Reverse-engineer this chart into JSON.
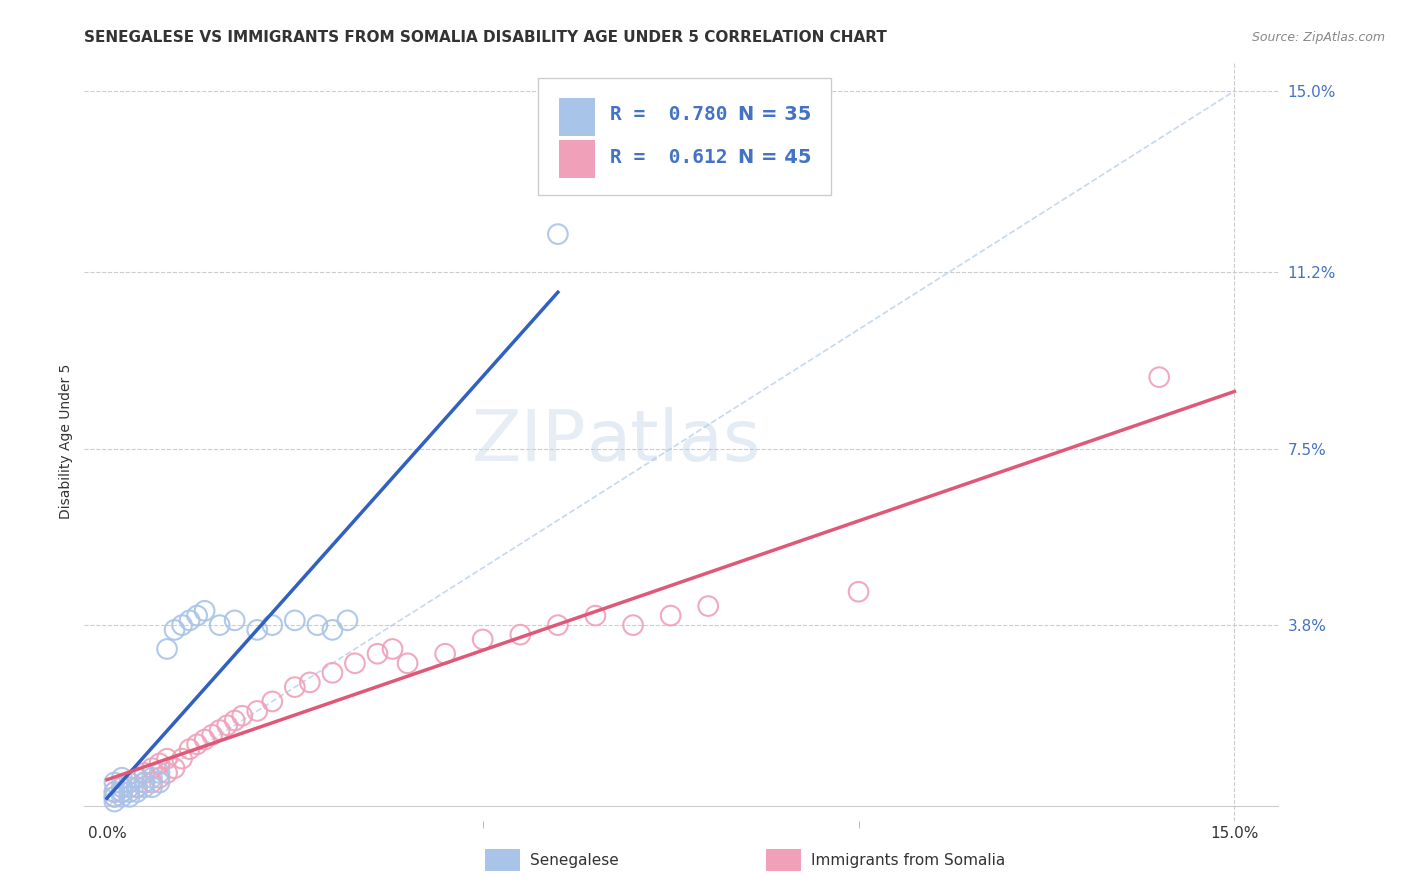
{
  "title": "SENEGALESE VS IMMIGRANTS FROM SOMALIA DISABILITY AGE UNDER 5 CORRELATION CHART",
  "source": "Source: ZipAtlas.com",
  "ylabel": "Disability Age Under 5",
  "xmin": 0.0,
  "xmax": 0.15,
  "ymin": 0.0,
  "ymax": 0.15,
  "ytick_positions": [
    0.038,
    0.075,
    0.112,
    0.15
  ],
  "ytick_labels": [
    "3.8%",
    "7.5%",
    "11.2%",
    "15.0%"
  ],
  "legend_r1": "R =  0.780",
  "legend_n1": "N = 35",
  "legend_r2": "R =  0.612",
  "legend_n2": "N = 45",
  "series1_label": "Senegalese",
  "series2_label": "Immigrants from Somalia",
  "series1_color": "#a8c4e8",
  "series2_color": "#f0a0b8",
  "series1_line_color": "#3060c0",
  "series2_line_color": "#e05878",
  "diag_line_color": "#b8cfe8",
  "watermark_zip": "ZIP",
  "watermark_atlas": "atlas",
  "background_color": "#ffffff",
  "senegalese_x": [
    0.001,
    0.001,
    0.001,
    0.001,
    0.002,
    0.002,
    0.002,
    0.002,
    0.003,
    0.003,
    0.003,
    0.004,
    0.004,
    0.004,
    0.005,
    0.005,
    0.006,
    0.006,
    0.007,
    0.007,
    0.008,
    0.009,
    0.01,
    0.011,
    0.012,
    0.013,
    0.015,
    0.017,
    0.02,
    0.022,
    0.025,
    0.028,
    0.03,
    0.032,
    0.06
  ],
  "senegalese_y": [
    0.001,
    0.002,
    0.003,
    0.005,
    0.002,
    0.003,
    0.004,
    0.006,
    0.002,
    0.003,
    0.005,
    0.003,
    0.004,
    0.006,
    0.004,
    0.005,
    0.004,
    0.006,
    0.005,
    0.007,
    0.033,
    0.037,
    0.038,
    0.039,
    0.04,
    0.041,
    0.038,
    0.039,
    0.037,
    0.038,
    0.039,
    0.038,
    0.037,
    0.039,
    0.12
  ],
  "somalia_x": [
    0.001,
    0.001,
    0.002,
    0.002,
    0.003,
    0.003,
    0.004,
    0.004,
    0.005,
    0.005,
    0.006,
    0.006,
    0.007,
    0.007,
    0.008,
    0.008,
    0.009,
    0.01,
    0.011,
    0.012,
    0.013,
    0.014,
    0.015,
    0.016,
    0.017,
    0.018,
    0.02,
    0.022,
    0.025,
    0.027,
    0.03,
    0.033,
    0.036,
    0.038,
    0.04,
    0.045,
    0.05,
    0.055,
    0.06,
    0.065,
    0.07,
    0.075,
    0.08,
    0.1,
    0.14
  ],
  "somalia_y": [
    0.002,
    0.003,
    0.003,
    0.004,
    0.004,
    0.005,
    0.004,
    0.006,
    0.005,
    0.007,
    0.005,
    0.008,
    0.006,
    0.009,
    0.007,
    0.01,
    0.008,
    0.01,
    0.012,
    0.013,
    0.014,
    0.015,
    0.016,
    0.017,
    0.018,
    0.019,
    0.02,
    0.022,
    0.025,
    0.026,
    0.028,
    0.03,
    0.032,
    0.033,
    0.03,
    0.032,
    0.035,
    0.036,
    0.038,
    0.04,
    0.038,
    0.04,
    0.042,
    0.045,
    0.09
  ],
  "title_fontsize": 11,
  "axis_label_fontsize": 10,
  "tick_fontsize": 11,
  "legend_fontsize": 14
}
